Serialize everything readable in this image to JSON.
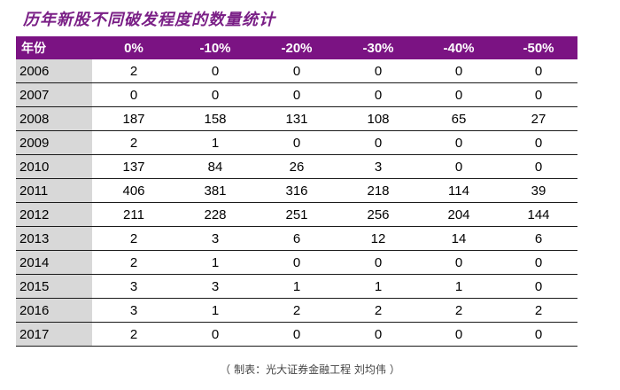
{
  "title": "历年新股不同破发程度的数量统计",
  "table": {
    "headers": [
      "年份",
      "0%",
      "-10%",
      "-20%",
      "-30%",
      "-40%",
      "-50%"
    ],
    "rows": [
      {
        "year": "2006",
        "values": [
          "2",
          "0",
          "0",
          "0",
          "0",
          "0"
        ]
      },
      {
        "year": "2007",
        "values": [
          "0",
          "0",
          "0",
          "0",
          "0",
          "0"
        ]
      },
      {
        "year": "2008",
        "values": [
          "187",
          "158",
          "131",
          "108",
          "65",
          "27"
        ]
      },
      {
        "year": "2009",
        "values": [
          "2",
          "1",
          "0",
          "0",
          "0",
          "0"
        ]
      },
      {
        "year": "2010",
        "values": [
          "137",
          "84",
          "26",
          "3",
          "0",
          "0"
        ]
      },
      {
        "year": "2011",
        "values": [
          "406",
          "381",
          "316",
          "218",
          "114",
          "39"
        ]
      },
      {
        "year": "2012",
        "values": [
          "211",
          "228",
          "251",
          "256",
          "204",
          "144"
        ]
      },
      {
        "year": "2013",
        "values": [
          "2",
          "3",
          "6",
          "12",
          "14",
          "6"
        ]
      },
      {
        "year": "2014",
        "values": [
          "2",
          "1",
          "0",
          "0",
          "0",
          "0"
        ]
      },
      {
        "year": "2015",
        "values": [
          "3",
          "3",
          "1",
          "1",
          "1",
          "0"
        ]
      },
      {
        "year": "2016",
        "values": [
          "3",
          "1",
          "2",
          "2",
          "2",
          "2"
        ]
      },
      {
        "year": "2017",
        "values": [
          "2",
          "0",
          "0",
          "0",
          "0",
          "0"
        ]
      }
    ]
  },
  "caption": {
    "open": "（",
    "text": "制表：光大证券金融工程 刘均伟",
    "close": "）"
  },
  "colors": {
    "header_bg": "#7b1383",
    "title": "#7a1f86",
    "year_cell_bg": "#d8d8d8"
  }
}
